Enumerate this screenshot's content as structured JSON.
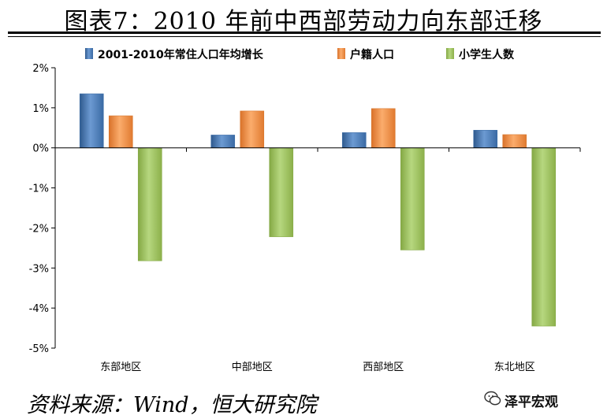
{
  "header": {
    "title": "图表7：2010 年前中西部劳动力向东部迁移"
  },
  "footer": {
    "source": "资料来源：Wind，恒大研究院",
    "watermark": "泽平宏观"
  },
  "colors": {
    "series_blue": "#4f81bd",
    "series_orange": "#f79646",
    "series_green": "#9bbb59"
  },
  "chart_data": {
    "type": "bar",
    "categories": [
      "东部地区",
      "中部地区",
      "西部地区",
      "东北地区"
    ],
    "series": [
      {
        "name": "2001-2010年常住人口年均增长",
        "values": [
          1.35,
          0.32,
          0.38,
          0.44
        ]
      },
      {
        "name": "户籍人口",
        "values": [
          0.8,
          0.92,
          0.98,
          0.33
        ]
      },
      {
        "name": "小学生人数",
        "values": [
          -2.82,
          -2.22,
          -2.55,
          -4.45
        ]
      }
    ],
    "yticks": [
      "2%",
      "1%",
      "0%",
      "-1%",
      "-2%",
      "-3%",
      "-4%",
      "-5%"
    ],
    "ylim": [
      -5,
      2
    ],
    "legend_position": "top",
    "grid": false
  }
}
